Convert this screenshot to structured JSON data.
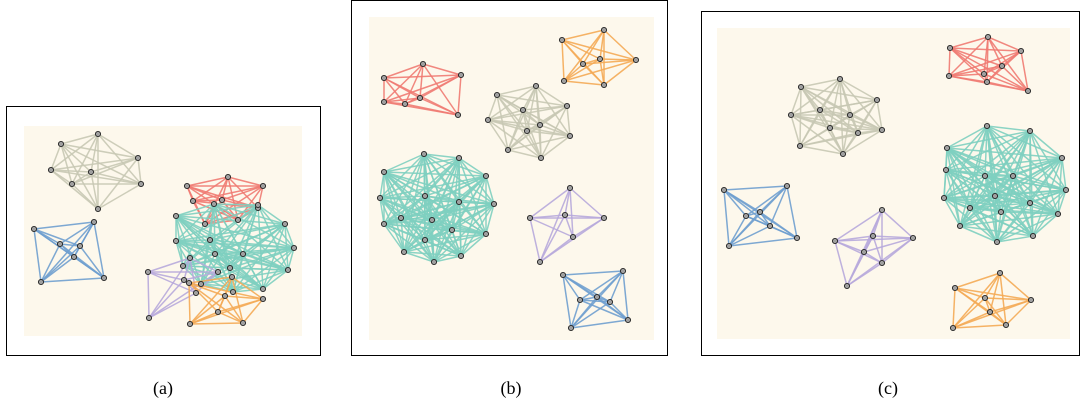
{
  "panels": [
    {
      "caption": "(a)"
    },
    {
      "caption": "(b)"
    },
    {
      "caption": "(c)"
    }
  ],
  "colors": {
    "canvas": "#fdf8ec",
    "node_fill": "#a0a0a0",
    "node_stroke": "#222222",
    "gray_cluster": "#c8c8b4",
    "red_cluster": "#ef7a72",
    "teal_cluster": "#7ecfc0",
    "blue_cluster": "#6f9fcf",
    "purple_cluster": "#b7a9db",
    "orange_cluster": "#f4aa55"
  },
  "clusters": [
    "gray",
    "red",
    "teal",
    "blue",
    "purple",
    "orange"
  ]
}
